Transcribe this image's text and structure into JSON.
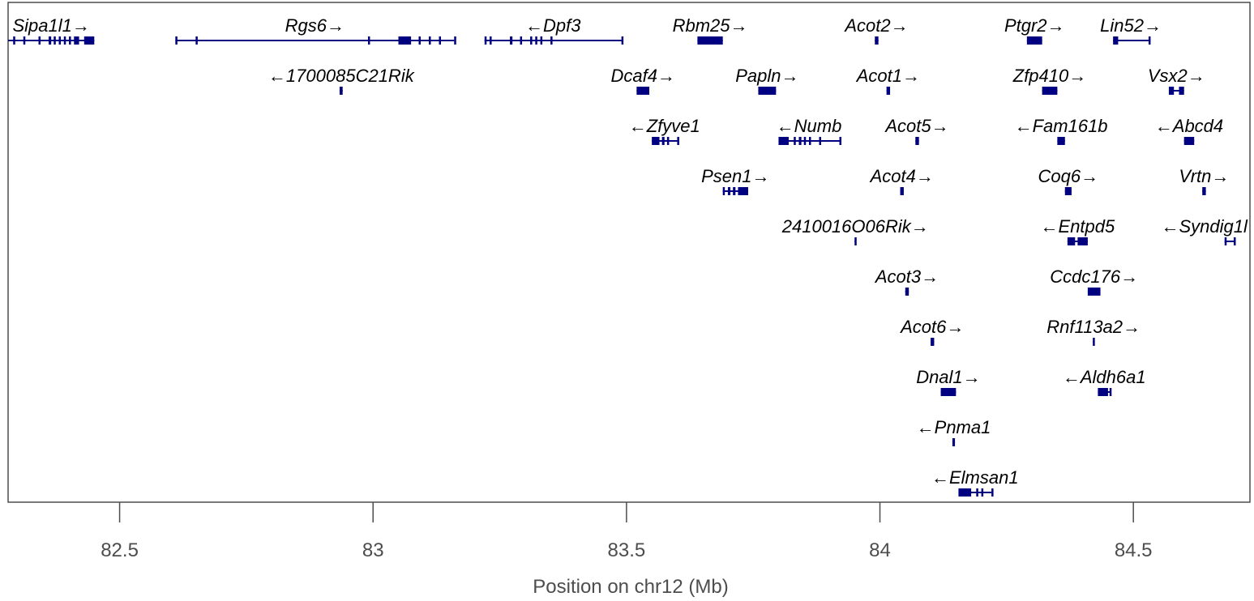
{
  "chart_data": {
    "type": "gene-track",
    "xlabel": "Position on chr12 (Mb)",
    "xlim": [
      82.28,
      84.73
    ],
    "xticks": [
      82.5,
      83,
      83.5,
      84,
      84.5
    ],
    "xtick_labels": [
      "82.5",
      "83",
      "83.5",
      "84",
      "84.5"
    ],
    "colors": {
      "gene": "#000080",
      "text": "#000000",
      "axis_text": "#4d4d4d",
      "frame": "#4d4d4d"
    },
    "genes": [
      {
        "name": "Sipa1l1",
        "strand": "+",
        "row": 0,
        "start": 82.28,
        "end": 82.45,
        "exons": [
          [
            82.29,
            82.292
          ],
          [
            82.31,
            82.312
          ],
          [
            82.34,
            82.342
          ],
          [
            82.36,
            82.365
          ],
          [
            82.37,
            82.372
          ],
          [
            82.38,
            82.382
          ],
          [
            82.39,
            82.393
          ],
          [
            82.4,
            82.402
          ],
          [
            82.41,
            82.42
          ],
          [
            82.43,
            82.45
          ]
        ]
      },
      {
        "name": "Rgs6",
        "strand": "+",
        "row": 0,
        "start": 82.61,
        "end": 83.16,
        "exons": [
          [
            82.61,
            82.612
          ],
          [
            82.65,
            82.652
          ],
          [
            82.99,
            82.992
          ],
          [
            83.05,
            83.075
          ],
          [
            83.09,
            83.092
          ],
          [
            83.11,
            83.112
          ],
          [
            83.13,
            83.132
          ],
          [
            83.16,
            83.162
          ]
        ]
      },
      {
        "name": "Dpf3",
        "strand": "-",
        "row": 0,
        "start": 83.22,
        "end": 83.49,
        "exons": [
          [
            83.22,
            83.222
          ],
          [
            83.23,
            83.232
          ],
          [
            83.27,
            83.275
          ],
          [
            83.29,
            83.292
          ],
          [
            83.31,
            83.312
          ],
          [
            83.32,
            83.322
          ],
          [
            83.33,
            83.332
          ],
          [
            83.35,
            83.352
          ],
          [
            83.49,
            83.492
          ]
        ]
      },
      {
        "name": "Rbm25",
        "strand": "+",
        "row": 0,
        "start": 83.64,
        "end": 83.69,
        "exons": [
          [
            83.64,
            83.69
          ]
        ]
      },
      {
        "name": "Acot2",
        "strand": "+",
        "row": 0,
        "start": 83.99,
        "end": 83.997,
        "exons": [
          [
            83.99,
            83.997
          ]
        ]
      },
      {
        "name": "Ptgr2",
        "strand": "+",
        "row": 0,
        "start": 84.29,
        "end": 84.32,
        "exons": [
          [
            84.29,
            84.32
          ]
        ]
      },
      {
        "name": "Lin52",
        "strand": "+",
        "row": 0,
        "start": 84.46,
        "end": 84.53,
        "exons": [
          [
            84.46,
            84.47
          ],
          [
            84.53,
            84.532
          ]
        ]
      },
      {
        "name": "1700085C21Rik",
        "strand": "-",
        "row": 1,
        "start": 82.934,
        "end": 82.94,
        "exons": [
          [
            82.934,
            82.94
          ]
        ]
      },
      {
        "name": "Dcaf4",
        "strand": "+",
        "row": 1,
        "start": 83.52,
        "end": 83.545,
        "exons": [
          [
            83.52,
            83.545
          ]
        ]
      },
      {
        "name": "Papln",
        "strand": "+",
        "row": 1,
        "start": 83.76,
        "end": 83.795,
        "exons": [
          [
            83.76,
            83.795
          ]
        ]
      },
      {
        "name": "Acot1",
        "strand": "+",
        "row": 1,
        "start": 84.013,
        "end": 84.02,
        "exons": [
          [
            84.013,
            84.02
          ]
        ]
      },
      {
        "name": "Zfp410",
        "strand": "+",
        "row": 1,
        "start": 84.32,
        "end": 84.35,
        "exons": [
          [
            84.32,
            84.35
          ]
        ]
      },
      {
        "name": "Vsx2",
        "strand": "+",
        "row": 1,
        "start": 84.57,
        "end": 84.6,
        "exons": [
          [
            84.57,
            84.58
          ],
          [
            84.59,
            84.6
          ]
        ]
      },
      {
        "name": "Zfyve1",
        "strand": "-",
        "row": 2,
        "start": 83.55,
        "end": 83.6,
        "exons": [
          [
            83.55,
            83.565
          ],
          [
            83.57,
            83.575
          ],
          [
            83.58,
            83.582
          ],
          [
            83.6,
            83.602
          ]
        ]
      },
      {
        "name": "Numb",
        "strand": "-",
        "row": 2,
        "start": 83.8,
        "end": 83.92,
        "exons": [
          [
            83.8,
            83.82
          ],
          [
            83.83,
            83.832
          ],
          [
            83.84,
            83.845
          ],
          [
            83.85,
            83.852
          ],
          [
            83.86,
            83.862
          ],
          [
            83.88,
            83.882
          ],
          [
            83.92,
            83.922
          ]
        ]
      },
      {
        "name": "Acot5",
        "strand": "+",
        "row": 2,
        "start": 84.07,
        "end": 84.077,
        "exons": [
          [
            84.07,
            84.077
          ]
        ]
      },
      {
        "name": "Fam161b",
        "strand": "-",
        "row": 2,
        "start": 84.35,
        "end": 84.365,
        "exons": [
          [
            84.35,
            84.365
          ]
        ]
      },
      {
        "name": "Abcd4",
        "strand": "-",
        "row": 2,
        "start": 84.6,
        "end": 84.62,
        "exons": [
          [
            84.6,
            84.62
          ]
        ]
      },
      {
        "name": "Psen1",
        "strand": "+",
        "row": 3,
        "start": 83.69,
        "end": 83.74,
        "exons": [
          [
            83.69,
            83.692
          ],
          [
            83.7,
            83.705
          ],
          [
            83.71,
            83.715
          ],
          [
            83.72,
            83.74
          ]
        ]
      },
      {
        "name": "Acot4",
        "strand": "+",
        "row": 3,
        "start": 84.04,
        "end": 84.047,
        "exons": [
          [
            84.04,
            84.047
          ]
        ]
      },
      {
        "name": "Coq6",
        "strand": "+",
        "row": 3,
        "start": 84.365,
        "end": 84.378,
        "exons": [
          [
            84.365,
            84.378
          ]
        ]
      },
      {
        "name": "Vrtn",
        "strand": "+",
        "row": 3,
        "start": 84.636,
        "end": 84.643,
        "exons": [
          [
            84.636,
            84.643
          ]
        ]
      },
      {
        "name": "2410016O06Rik",
        "strand": "+",
        "row": 4,
        "start": 83.95,
        "end": 83.953,
        "exons": [
          [
            83.95,
            83.953
          ]
        ]
      },
      {
        "name": "Entpd5",
        "strand": "-",
        "row": 4,
        "start": 84.37,
        "end": 84.41,
        "exons": [
          [
            84.37,
            84.385
          ],
          [
            84.39,
            84.41
          ]
        ]
      },
      {
        "name": "Syndig1l",
        "strand": "-",
        "row": 4,
        "start": 84.68,
        "end": 84.7,
        "exons": [
          [
            84.68,
            84.682
          ],
          [
            84.698,
            84.7
          ]
        ]
      },
      {
        "name": "Acot3",
        "strand": "+",
        "row": 5,
        "start": 84.05,
        "end": 84.057,
        "exons": [
          [
            84.05,
            84.057
          ]
        ]
      },
      {
        "name": "Ccdc176",
        "strand": "+",
        "row": 5,
        "start": 84.41,
        "end": 84.435,
        "exons": [
          [
            84.41,
            84.435
          ]
        ]
      },
      {
        "name": "Acot6",
        "strand": "+",
        "row": 6,
        "start": 84.1,
        "end": 84.107,
        "exons": [
          [
            84.1,
            84.107
          ]
        ]
      },
      {
        "name": "Rnf113a2",
        "strand": "+",
        "row": 6,
        "start": 84.42,
        "end": 84.423,
        "exons": [
          [
            84.42,
            84.423
          ]
        ]
      },
      {
        "name": "Dnal1",
        "strand": "+",
        "row": 7,
        "start": 84.12,
        "end": 84.15,
        "exons": [
          [
            84.12,
            84.15
          ]
        ]
      },
      {
        "name": "Aldh6a1",
        "strand": "-",
        "row": 7,
        "start": 84.43,
        "end": 84.455,
        "exons": [
          [
            84.43,
            84.45
          ],
          [
            84.453,
            84.455
          ]
        ]
      },
      {
        "name": "Pnma1",
        "strand": "-",
        "row": 8,
        "start": 84.143,
        "end": 84.148,
        "exons": [
          [
            84.143,
            84.148
          ]
        ]
      },
      {
        "name": "Elmsan1",
        "strand": "-",
        "row": 9,
        "start": 84.155,
        "end": 84.22,
        "exons": [
          [
            84.155,
            84.18
          ],
          [
            84.19,
            84.192
          ],
          [
            84.2,
            84.202
          ],
          [
            84.22,
            84.222
          ]
        ]
      }
    ]
  }
}
